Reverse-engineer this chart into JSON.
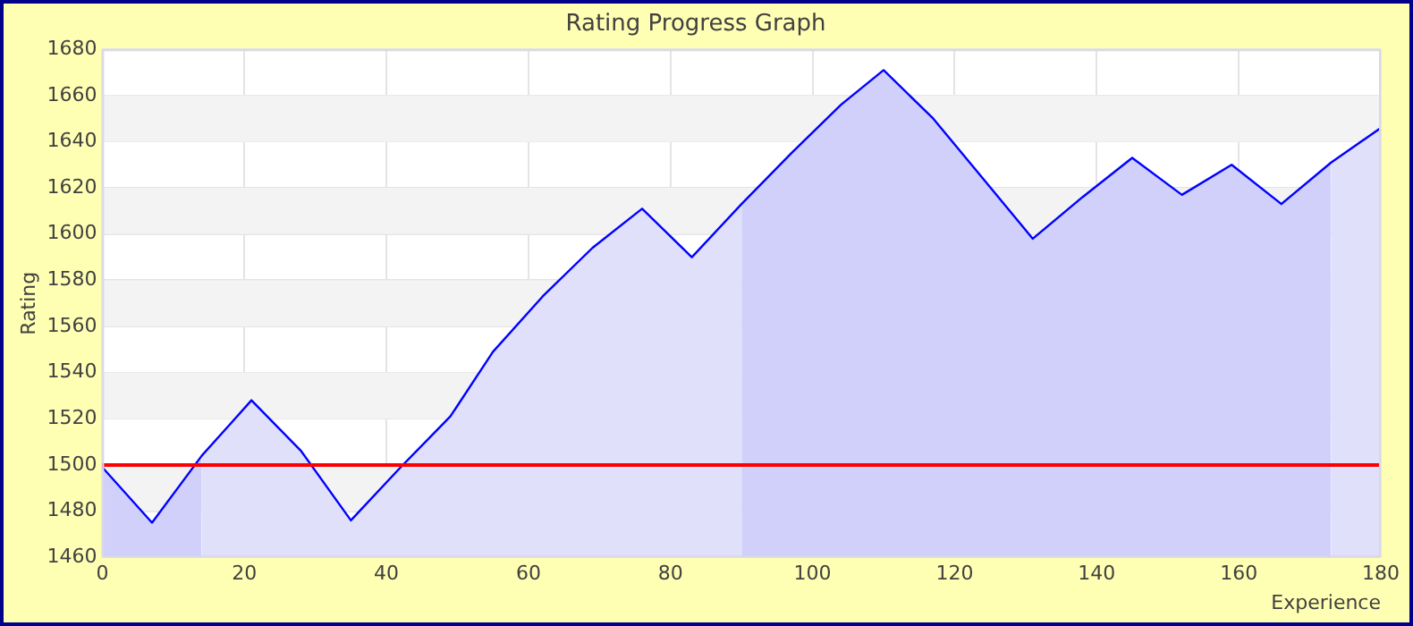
{
  "chart_data": {
    "type": "area",
    "title": "Rating Progress Graph",
    "xlabel": "Experience",
    "ylabel": "Rating",
    "series": [
      {
        "color": "#d0d0fa",
        "x": [
          0,
          7,
          14
        ],
        "values": [
          1499,
          1475,
          1504
        ]
      },
      {
        "color": "#e0e0fa",
        "x": [
          14,
          21,
          28,
          35,
          42,
          49,
          55,
          62,
          69,
          76,
          83,
          90
        ],
        "values": [
          1504,
          1528,
          1506,
          1476,
          1499,
          1521,
          1549,
          1573,
          1594,
          1611,
          1590,
          1613
        ]
      },
      {
        "color": "#d0d0fa",
        "x": [
          90,
          97,
          104,
          110,
          117,
          124,
          131,
          138,
          145,
          152,
          159,
          166,
          173
        ],
        "values": [
          1613,
          1635,
          1656,
          1671,
          1650,
          1624,
          1598,
          1616,
          1633,
          1617,
          1630,
          1613,
          1631
        ]
      },
      {
        "color": "#e0e0fa",
        "x": [
          173,
          180
        ],
        "values": [
          1631,
          1646
        ]
      },
      {
        "type": "line",
        "color": "#0000ff",
        "x": [
          0,
          7,
          14,
          21,
          28,
          35,
          42,
          49,
          55,
          62,
          69,
          76,
          83,
          90,
          97,
          104,
          110,
          117,
          124,
          131,
          138,
          145,
          152,
          159,
          166,
          173,
          180
        ],
        "values": [
          1499,
          1475,
          1504,
          1528,
          1506,
          1476,
          1499,
          1521,
          1549,
          1573,
          1594,
          1611,
          1590,
          1613,
          1635,
          1656,
          1671,
          1650,
          1624,
          1598,
          1616,
          1633,
          1617,
          1630,
          1613,
          1631,
          1646
        ]
      }
    ],
    "xlim": [
      0,
      180
    ],
    "xticks": [
      0,
      20,
      40,
      60,
      80,
      100,
      120,
      140,
      160,
      180
    ],
    "ylim": [
      1460,
      1680
    ],
    "yticks": [
      1460,
      1480,
      1500,
      1520,
      1540,
      1560,
      1580,
      1600,
      1620,
      1640,
      1660,
      1680
    ],
    "ref_lines": [
      {
        "axis": "y",
        "value": 1500,
        "color": "#ff0000"
      }
    ],
    "grid": true,
    "legend": false,
    "marker": "none",
    "line_style": "solid"
  }
}
